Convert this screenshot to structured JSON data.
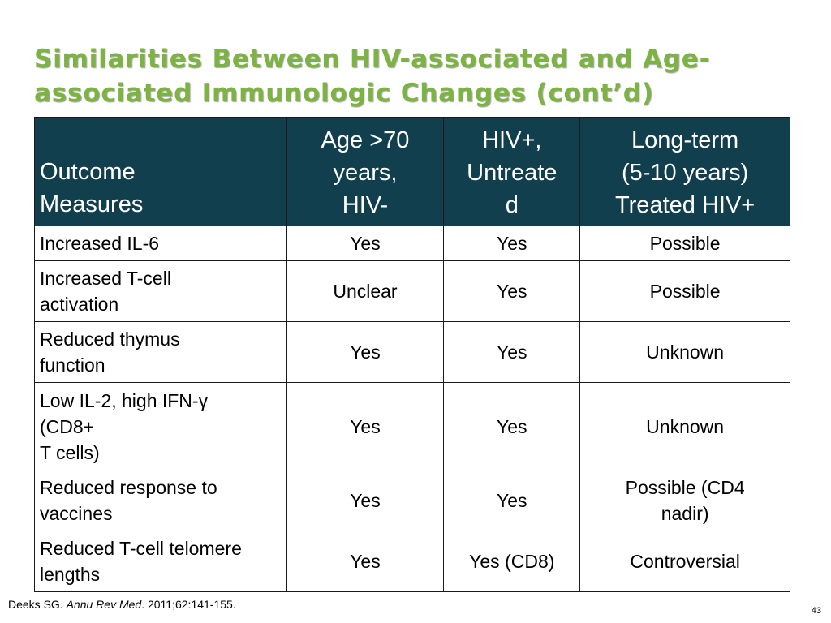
{
  "title": {
    "line1": "Similarities Between HIV-associated and Age-",
    "line2": "associated Immunologic Changes (cont’d)"
  },
  "table": {
    "headers": [
      {
        "lines": [
          "Outcome",
          "Measures"
        ]
      },
      {
        "lines": [
          "Age >70",
          "years,",
          "HIV-"
        ]
      },
      {
        "lines": [
          "HIV+,",
          "Untreate",
          "d"
        ]
      },
      {
        "lines": [
          "Long-term",
          "(5-10 years)",
          "Treated HIV+"
        ]
      }
    ],
    "rows": [
      {
        "measure_lines": [
          "Increased IL-6"
        ],
        "age70": "Yes",
        "hiv_untreated": "Yes",
        "long_term_lines": [
          "Possible"
        ]
      },
      {
        "measure_lines": [
          "Increased T-cell",
          "activation"
        ],
        "age70": "Unclear",
        "hiv_untreated": "Yes",
        "long_term_lines": [
          "Possible"
        ]
      },
      {
        "measure_lines": [
          "Reduced thymus",
          "function"
        ],
        "age70": "Yes",
        "hiv_untreated": "Yes",
        "long_term_lines": [
          "Unknown"
        ]
      },
      {
        "measure_lines": [
          "Low IL-2, high IFN-γ",
          "(CD8+",
          "T cells)"
        ],
        "age70": "Yes",
        "hiv_untreated": "Yes",
        "long_term_lines": [
          "Unknown"
        ]
      },
      {
        "measure_lines": [
          "Reduced response to",
          "vaccines"
        ],
        "age70": "Yes",
        "hiv_untreated": "Yes",
        "long_term_lines": [
          "Possible (CD4",
          "nadir)"
        ]
      },
      {
        "measure_lines": [
          "Reduced T-cell telomere",
          "lengths"
        ],
        "age70": "Yes",
        "hiv_untreated": "Yes (CD8)",
        "long_term_lines": [
          "Controversial"
        ]
      }
    ]
  },
  "citation": {
    "author": "Deeks SG. ",
    "journal": "Annu Rev Med",
    "details": ". 2011;62:141-155."
  },
  "page_number": "43",
  "colors": {
    "title": "#7cb342",
    "header_background": "#113f4e",
    "header_text": "#ffffff",
    "border": "#1a1a1a"
  }
}
